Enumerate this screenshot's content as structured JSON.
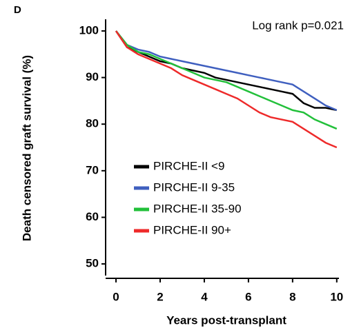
{
  "chart_data": {
    "type": "line",
    "panel_label": "D",
    "annotation": "Log rank p=0.021",
    "xlabel": "Years post-transplant",
    "ylabel": "Death censored graft survival (%)",
    "x": [
      0,
      0.5,
      1,
      1.5,
      2,
      2.5,
      3,
      3.5,
      4,
      4.5,
      5,
      5.5,
      6,
      6.5,
      7,
      7.5,
      8,
      8.5,
      9,
      9.5,
      10
    ],
    "series": [
      {
        "name": "PIRCHE-II <9",
        "color": "#000000",
        "values": [
          100,
          96.5,
          95.5,
          94.5,
          93.5,
          93,
          92,
          91.5,
          91,
          90,
          89.5,
          89,
          88.5,
          88,
          87.5,
          87,
          86.5,
          84.5,
          83.5,
          83.5,
          83
        ]
      },
      {
        "name": "PIRCHE-II 9-35",
        "color": "#3f5fbf",
        "values": [
          100,
          97,
          96,
          95.5,
          94.5,
          94,
          93.5,
          93,
          92.5,
          92,
          91.5,
          91,
          90.5,
          90,
          89.5,
          89,
          88.5,
          87,
          85.5,
          84,
          83
        ]
      },
      {
        "name": "PIRCHE-II 35-90",
        "color": "#22c03a",
        "values": [
          100,
          97,
          95.5,
          95,
          94,
          93,
          92,
          91,
          90,
          89.5,
          89,
          88,
          87,
          86,
          85,
          84,
          83,
          82.5,
          81,
          80,
          79
        ]
      },
      {
        "name": "PIRCHE-II 90+",
        "color": "#ee2a2a",
        "values": [
          100,
          96.5,
          95,
          94,
          93,
          92,
          90.5,
          89.5,
          88.5,
          87.5,
          86.5,
          85.5,
          84,
          82.5,
          81.5,
          81,
          80.5,
          79,
          77.5,
          76,
          75
        ]
      }
    ],
    "xlim": [
      -0.47,
      10.1
    ],
    "xticks": [
      0,
      2,
      4,
      6,
      8,
      10
    ],
    "ylim": [
      47.5,
      102.5
    ],
    "yticks": [
      50,
      60,
      70,
      80,
      90,
      100
    ]
  }
}
